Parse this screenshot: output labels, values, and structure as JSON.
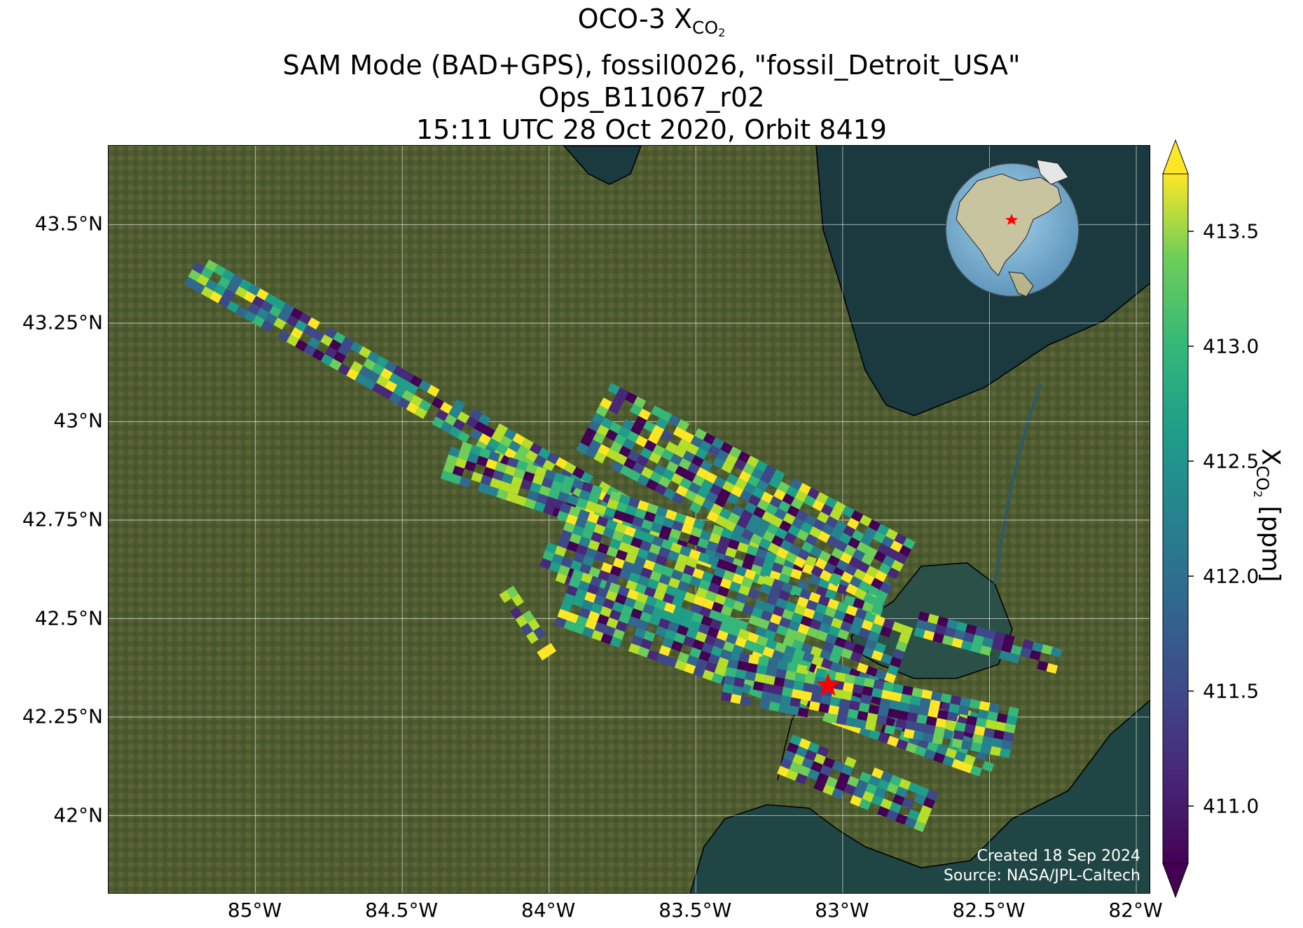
{
  "title": {
    "line1_prefix": "OCO-3 X",
    "line1_sub": "CO",
    "line1_sub2": "2",
    "line2": "SAM Mode (BAD+GPS), fossil0026, \"fossil_Detroit_USA\"",
    "line3": "Ops_B11067_r02",
    "line4": "15:11 UTC 28 Oct 2020, Orbit 8419"
  },
  "map": {
    "lon_range": [
      -85.5,
      -81.95
    ],
    "lat_range": [
      41.8,
      43.7
    ],
    "lon_ticks": [
      "85°W",
      "84.5°W",
      "84°W",
      "83.5°W",
      "83°W",
      "82.5°W",
      "82°W"
    ],
    "lat_ticks": [
      "43.5°N",
      "43.25°N",
      "43°N",
      "42.75°N",
      "42.5°N",
      "42.25°N",
      "42°N"
    ],
    "target_marker": {
      "name": "fossil_Detroit_USA",
      "lon": -83.05,
      "lat": 42.33,
      "color": "#ff0000"
    },
    "colors": {
      "land": "#4a5a2e",
      "water": "#1f3d40",
      "grid": "#ffffff",
      "coast": "#000000"
    }
  },
  "colorbar": {
    "label_prefix": "X",
    "label_sub": "CO",
    "label_sub2": "2",
    "label_suffix": " [ppm]",
    "range": [
      410.75,
      413.75
    ],
    "ticks": [
      "413.5",
      "413.0",
      "412.5",
      "412.0",
      "411.5",
      "411.0"
    ],
    "tick_values": [
      413.5,
      413.0,
      412.5,
      412.0,
      411.5,
      411.0
    ],
    "colormap": "viridis",
    "extend": "both"
  },
  "credits": {
    "created": "Created 18 Sep 2024",
    "source": "Source: NASA/JPL-Caltech"
  },
  "swaths": [
    {
      "name": "swath-north-long",
      "start": [
        -85.22,
        43.38
      ],
      "end": [
        -83.65,
        42.72
      ],
      "half_width": 0.05
    },
    {
      "name": "swath-north-center",
      "start": [
        -84.35,
        42.9
      ],
      "end": [
        -82.85,
        42.53
      ],
      "half_width": 0.06
    },
    {
      "name": "swath-upper-block",
      "start": [
        -83.85,
        43.01
      ],
      "end": [
        -82.8,
        42.6
      ],
      "half_width": 0.1
    },
    {
      "name": "swath-middle",
      "start": [
        -84.0,
        42.7
      ],
      "end": [
        -82.8,
        42.38
      ],
      "half_width": 0.1
    },
    {
      "name": "swath-south-1",
      "start": [
        -83.95,
        42.55
      ],
      "end": [
        -82.45,
        42.15
      ],
      "half_width": 0.08
    },
    {
      "name": "swath-south-2",
      "start": [
        -83.4,
        42.35
      ],
      "end": [
        -82.4,
        42.2
      ],
      "half_width": 0.07
    },
    {
      "name": "swath-south-3",
      "start": [
        -83.2,
        42.15
      ],
      "end": [
        -82.7,
        42.0
      ],
      "half_width": 0.06
    },
    {
      "name": "swath-lake-east",
      "start": [
        -82.75,
        42.48
      ],
      "end": [
        -82.25,
        42.38
      ],
      "half_width": 0.04
    },
    {
      "name": "swath-west-small",
      "start": [
        -84.15,
        42.57
      ],
      "end": [
        -84.0,
        42.4
      ],
      "half_width": 0.025
    }
  ]
}
